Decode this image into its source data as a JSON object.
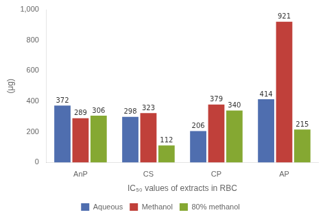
{
  "chart_data": {
    "type": "bar",
    "categories": [
      "AnP",
      "CS",
      "CP",
      "AP"
    ],
    "series": [
      {
        "name": "Aqueous",
        "color": "#4F6EAF",
        "values": [
          372,
          298,
          206,
          414
        ]
      },
      {
        "name": "Methanol",
        "color": "#C0403A",
        "values": [
          289,
          323,
          379,
          921
        ]
      },
      {
        "name": "80% methanol",
        "color": "#85A832",
        "values": [
          306,
          112,
          340,
          215
        ]
      }
    ],
    "xlabel": "IC₅₀ values of extracts in RBC",
    "ylabel": "(μg)",
    "ylim": [
      0,
      1000
    ],
    "yticks": [
      0,
      200,
      400,
      600,
      800,
      1000
    ],
    "grid": false,
    "legend": "bottom",
    "data_labels": true
  }
}
